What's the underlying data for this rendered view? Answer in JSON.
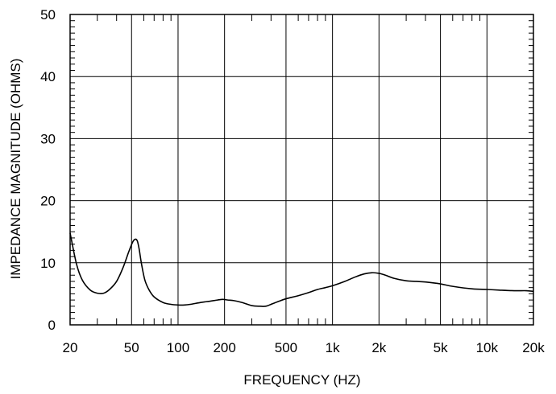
{
  "chart_data": {
    "type": "line",
    "title": "",
    "xlabel": "FREQUENCY  (HZ)",
    "ylabel": "IMPEDANCE MAGNITUDE  (OHMS)",
    "xscale": "log",
    "xlim": [
      20,
      20000
    ],
    "ylim": [
      0,
      50
    ],
    "grid": true,
    "xticks": [
      {
        "value": 20,
        "label": "20"
      },
      {
        "value": 50,
        "label": "50"
      },
      {
        "value": 100,
        "label": "100"
      },
      {
        "value": 200,
        "label": "200"
      },
      {
        "value": 500,
        "label": "500"
      },
      {
        "value": 1000,
        "label": "1k"
      },
      {
        "value": 2000,
        "label": "2k"
      },
      {
        "value": 5000,
        "label": "5k"
      },
      {
        "value": 10000,
        "label": "10k"
      },
      {
        "value": 20000,
        "label": "20k"
      }
    ],
    "yticks": [
      {
        "value": 0,
        "label": "0"
      },
      {
        "value": 10,
        "label": "10"
      },
      {
        "value": 20,
        "label": "20"
      },
      {
        "value": 30,
        "label": "30"
      },
      {
        "value": 40,
        "label": "40"
      },
      {
        "value": 50,
        "label": "50"
      }
    ],
    "series": [
      {
        "color": "#000000",
        "x": [
          20,
          22,
          24,
          27,
          30,
          33,
          36,
          40,
          44,
          48,
          51,
          53,
          54.5,
          56,
          58,
          61,
          65,
          70,
          80,
          90,
          100,
          110,
          120,
          140,
          160,
          180,
          195,
          210,
          230,
          260,
          300,
          340,
          370,
          400,
          450,
          500,
          600,
          700,
          800,
          900,
          1000,
          1200,
          1400,
          1600,
          1800,
          2000,
          2200,
          2500,
          3000,
          3500,
          4000,
          5000,
          6000,
          8000,
          10000,
          12000,
          15000,
          18000,
          20000
        ],
        "y": [
          14.8,
          9.8,
          7.2,
          5.6,
          5.1,
          5.1,
          5.7,
          7.0,
          9.2,
          11.8,
          13.4,
          13.8,
          13.5,
          12.2,
          9.8,
          7.2,
          5.6,
          4.5,
          3.6,
          3.3,
          3.2,
          3.2,
          3.3,
          3.6,
          3.8,
          4.0,
          4.1,
          4.0,
          3.9,
          3.6,
          3.1,
          3.0,
          3.0,
          3.3,
          3.8,
          4.2,
          4.7,
          5.2,
          5.7,
          6.0,
          6.3,
          7.0,
          7.7,
          8.2,
          8.4,
          8.3,
          8.0,
          7.5,
          7.1,
          7.0,
          6.9,
          6.6,
          6.2,
          5.8,
          5.7,
          5.6,
          5.5,
          5.5,
          5.4
        ]
      }
    ]
  }
}
